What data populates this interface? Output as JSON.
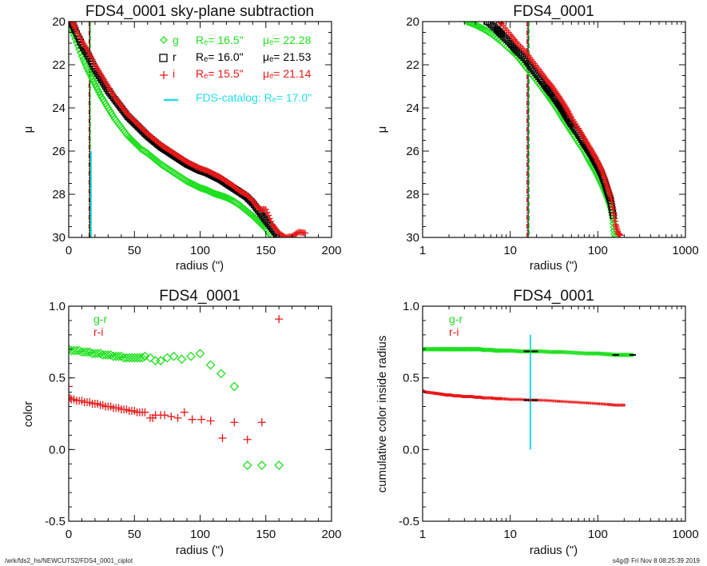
{
  "colors": {
    "g": "#1fe01f",
    "r": "#000000",
    "i": "#e81818",
    "catalog": "#22dde8",
    "frame": "#111111"
  },
  "footer": {
    "left": "/wrk/fds2_hs/NEWCUTS2/FDS4_0001_ciplot",
    "right": "s4g@  Fri Nov  8 08:25:39 2019"
  },
  "chart_data": [
    {
      "id": "sb-linear",
      "type": "scatter",
      "title": "FDS4_0001 sky-plane subtraction",
      "xlabel": "radius (\")",
      "ylabel": "μ",
      "xscale": "linear",
      "xlim": [
        0,
        200
      ],
      "ylim": [
        30,
        20
      ],
      "xticks": [
        0,
        50,
        100,
        150,
        200
      ],
      "xtick_labels": [
        "0",
        "50",
        "100",
        "150",
        "200"
      ],
      "yticks": [
        20,
        22,
        24,
        26,
        28,
        30
      ],
      "ytick_labels": [
        "20",
        "22",
        "24",
        "26",
        "28",
        "30"
      ],
      "legend_position": "top-right",
      "legend": [
        {
          "symbol": "diamond",
          "band": "g",
          "re": "Rₑ=  16.5\"",
          "mue": "μₑ= 22.28"
        },
        {
          "symbol": "square",
          "band": "r",
          "re": "Rₑ=  16.0\"",
          "mue": "μₑ= 21.53"
        },
        {
          "symbol": "plus",
          "band": "i",
          "re": "Rₑ=  15.5\"",
          "mue": "μₑ= 21.14"
        },
        {
          "symbol": "line",
          "band": "",
          "re": "FDS-catalog: Rₑ=  17.0\"",
          "mue": ""
        }
      ],
      "vlines": [
        {
          "x": 15.5,
          "color": "i",
          "style": "dashdot"
        },
        {
          "x": 16.0,
          "color": "r",
          "style": "solid"
        },
        {
          "x": 16.5,
          "color": "g",
          "style": "dashed"
        },
        {
          "x": 17.0,
          "color": "catalog",
          "style": "solid",
          "ymin": 26,
          "ymax": 30
        }
      ],
      "series": [
        {
          "name": "g",
          "symbol": "diamond",
          "x": [
            0,
            5,
            10,
            15,
            20,
            25,
            30,
            35,
            40,
            45,
            50,
            55,
            60,
            65,
            70,
            75,
            80,
            85,
            90,
            95,
            100,
            105,
            110,
            115,
            120,
            125,
            130,
            135,
            140,
            145,
            150,
            155
          ],
          "y": [
            20.0,
            20.8,
            21.6,
            22.3,
            22.9,
            23.5,
            24.0,
            24.5,
            24.9,
            25.3,
            25.6,
            25.9,
            26.1,
            26.35,
            26.6,
            26.8,
            27.0,
            27.2,
            27.4,
            27.55,
            27.7,
            27.8,
            27.95,
            28.05,
            28.15,
            28.3,
            28.5,
            28.75,
            29.0,
            29.3,
            29.6,
            30.0
          ]
        },
        {
          "name": "r",
          "symbol": "square",
          "x": [
            2,
            5,
            10,
            15,
            20,
            25,
            30,
            35,
            40,
            45,
            50,
            55,
            60,
            65,
            70,
            75,
            80,
            85,
            90,
            95,
            100,
            105,
            110,
            115,
            120,
            125,
            130,
            135,
            140,
            145,
            150,
            155,
            160
          ],
          "y": [
            20.0,
            20.4,
            21.1,
            21.6,
            22.2,
            22.7,
            23.2,
            23.6,
            24.0,
            24.4,
            24.7,
            25.0,
            25.3,
            25.55,
            25.8,
            26.0,
            26.2,
            26.4,
            26.6,
            26.75,
            26.9,
            27.0,
            27.15,
            27.3,
            27.5,
            27.7,
            27.9,
            28.1,
            28.4,
            28.8,
            29.2,
            29.6,
            30.0
          ]
        },
        {
          "name": "i",
          "symbol": "plus",
          "x": [
            3,
            5,
            10,
            15,
            20,
            25,
            30,
            35,
            40,
            45,
            50,
            55,
            60,
            65,
            70,
            75,
            80,
            85,
            90,
            95,
            100,
            105,
            110,
            115,
            120,
            125,
            130,
            135,
            140,
            145,
            150,
            155,
            160,
            165,
            170,
            175,
            180
          ],
          "y": [
            20.0,
            20.3,
            20.9,
            21.4,
            22.0,
            22.5,
            23.0,
            23.5,
            23.9,
            24.3,
            24.6,
            24.9,
            25.2,
            25.45,
            25.7,
            25.9,
            26.1,
            26.3,
            26.5,
            26.65,
            26.8,
            26.9,
            27.05,
            27.2,
            27.4,
            27.6,
            27.85,
            28.0,
            28.3,
            28.7,
            28.7,
            29.4,
            29.8,
            30.0,
            29.95,
            29.75,
            29.8
          ]
        }
      ]
    },
    {
      "id": "sb-log",
      "type": "scatter",
      "title": "FDS4_0001",
      "xlabel": "radius (\")",
      "ylabel": "μ",
      "xscale": "log",
      "xlim": [
        1,
        1000
      ],
      "ylim": [
        30,
        20
      ],
      "xticks": [
        1,
        10,
        100,
        1000
      ],
      "xtick_labels": [
        "1",
        "10",
        "100",
        "1000"
      ],
      "yticks": [
        20,
        22,
        24,
        26,
        28,
        30
      ],
      "ytick_labels": [
        "20",
        "22",
        "24",
        "26",
        "28",
        "30"
      ],
      "vlines": [
        {
          "x": 15.5,
          "color": "i",
          "style": "dashdot"
        },
        {
          "x": 16.0,
          "color": "r",
          "style": "solid"
        },
        {
          "x": 16.5,
          "color": "g",
          "style": "dashed"
        }
      ],
      "series": [
        {
          "name": "g",
          "symbol": "diamond",
          "x": [
            3.2,
            4,
            5,
            6,
            8,
            10,
            12,
            15,
            18,
            22,
            26,
            30,
            35,
            40,
            45,
            50,
            60,
            70,
            80,
            90,
            100,
            110,
            120,
            130,
            140,
            150,
            155
          ],
          "y": [
            20.0,
            20.15,
            20.35,
            20.55,
            20.95,
            21.3,
            21.6,
            22.1,
            22.5,
            22.95,
            23.35,
            23.7,
            24.1,
            24.5,
            24.8,
            25.1,
            25.6,
            26.0,
            26.45,
            26.8,
            27.15,
            27.5,
            27.85,
            28.2,
            28.6,
            29.2,
            30.0
          ]
        },
        {
          "name": "r",
          "symbol": "square",
          "x": [
            5.5,
            7,
            8,
            10,
            12,
            15,
            18,
            22,
            26,
            30,
            35,
            40,
            45,
            50,
            60,
            70,
            80,
            90,
            100,
            110,
            120,
            130,
            140,
            150
          ],
          "y": [
            20.0,
            20.35,
            20.6,
            21.0,
            21.35,
            21.75,
            22.2,
            22.65,
            23.05,
            23.35,
            23.75,
            24.1,
            24.45,
            24.75,
            25.2,
            25.65,
            26.0,
            26.35,
            26.7,
            27.05,
            27.45,
            27.9,
            28.3,
            29.0
          ]
        },
        {
          "name": "i",
          "symbol": "plus",
          "x": [
            7.5,
            8,
            10,
            12,
            15,
            18,
            22,
            26,
            30,
            35,
            40,
            45,
            50,
            60,
            70,
            80,
            90,
            100,
            110,
            120,
            130,
            140,
            150,
            160,
            170,
            180
          ],
          "y": [
            20.0,
            20.1,
            20.6,
            21.0,
            21.4,
            21.85,
            22.3,
            22.7,
            23.0,
            23.4,
            23.75,
            24.1,
            24.45,
            24.95,
            25.4,
            25.8,
            26.15,
            26.5,
            26.85,
            27.25,
            27.7,
            28.1,
            28.7,
            29.4,
            29.8,
            29.9
          ]
        }
      ]
    },
    {
      "id": "color-profile",
      "type": "scatter",
      "title": "FDS4_0001",
      "xlabel": "radius (\")",
      "ylabel": "color",
      "xscale": "linear",
      "xlim": [
        0,
        200
      ],
      "ylim": [
        -0.5,
        1.0
      ],
      "xticks": [
        0,
        50,
        100,
        150,
        200
      ],
      "xtick_labels": [
        "0",
        "50",
        "100",
        "150",
        "200"
      ],
      "yticks": [
        -0.5,
        0.0,
        0.5,
        1.0
      ],
      "ytick_labels": [
        "-0.5",
        "0.0",
        "0.5",
        "1.0"
      ],
      "legend_position": "top-left",
      "legend": [
        {
          "label": "g-r",
          "color": "g"
        },
        {
          "label": "r-i",
          "color": "i"
        }
      ],
      "series": [
        {
          "name": "g-r",
          "symbol": "diamond",
          "x": [
            0,
            2,
            4,
            6,
            8,
            10,
            12,
            14,
            16,
            18,
            20,
            22,
            24,
            26,
            28,
            30,
            32,
            34,
            36,
            38,
            40,
            42,
            44,
            46,
            48,
            50,
            52,
            54,
            56,
            58,
            62,
            66,
            70,
            75,
            80,
            86,
            93,
            100,
            108,
            116,
            126,
            136,
            147,
            160
          ],
          "y": [
            0.7,
            0.69,
            0.69,
            0.69,
            0.69,
            0.68,
            0.68,
            0.68,
            0.68,
            0.67,
            0.67,
            0.67,
            0.67,
            0.66,
            0.66,
            0.66,
            0.66,
            0.65,
            0.65,
            0.65,
            0.65,
            0.64,
            0.64,
            0.64,
            0.64,
            0.64,
            0.64,
            0.64,
            0.64,
            0.65,
            0.64,
            0.62,
            0.62,
            0.64,
            0.65,
            0.63,
            0.65,
            0.67,
            0.59,
            0.53,
            0.44,
            -0.11,
            -0.11,
            -0.11
          ]
        },
        {
          "name": "r-i",
          "symbol": "plus",
          "x": [
            0,
            1,
            2,
            4,
            6,
            8,
            10,
            12,
            14,
            16,
            18,
            20,
            22,
            24,
            26,
            28,
            30,
            32,
            34,
            36,
            38,
            40,
            42,
            44,
            46,
            48,
            50,
            52,
            54,
            56,
            58,
            62,
            64,
            66,
            70,
            73,
            78,
            83,
            88,
            94,
            101,
            108,
            117,
            126,
            136,
            147,
            160
          ],
          "y": [
            0.44,
            0.36,
            0.35,
            0.35,
            0.34,
            0.34,
            0.34,
            0.33,
            0.33,
            0.33,
            0.32,
            0.32,
            0.32,
            0.31,
            0.31,
            0.3,
            0.3,
            0.3,
            0.29,
            0.29,
            0.29,
            0.28,
            0.28,
            0.28,
            0.27,
            0.27,
            0.27,
            0.26,
            0.26,
            0.26,
            0.26,
            0.22,
            0.22,
            0.24,
            0.24,
            0.24,
            0.23,
            0.22,
            0.26,
            0.21,
            0.21,
            0.2,
            0.08,
            0.19,
            0.07,
            0.19,
            0.91
          ]
        }
      ]
    },
    {
      "id": "cumulative-color",
      "type": "scatter",
      "title": "FDS4_0001",
      "xlabel": "radius (\")",
      "ylabel": "cumulative color inside radius",
      "xscale": "log",
      "xlim": [
        1,
        1000
      ],
      "ylim": [
        -0.5,
        1.0
      ],
      "xticks": [
        1,
        10,
        100,
        1000
      ],
      "xtick_labels": [
        "1",
        "10",
        "100",
        "1000"
      ],
      "yticks": [
        -0.5,
        0.0,
        0.5,
        1.0
      ],
      "ytick_labels": [
        "-0.5",
        "0.0",
        "0.5",
        "1.0"
      ],
      "legend_position": "top-left",
      "legend": [
        {
          "label": "g-r",
          "color": "g"
        },
        {
          "label": "r-i",
          "color": "i"
        }
      ],
      "vlines": [
        {
          "x": 17.0,
          "color": "catalog",
          "style": "solid",
          "ymin": 0.0,
          "ymax": 0.8
        }
      ],
      "markers": [
        {
          "x": 15.5,
          "y": 0.685,
          "color": "r"
        },
        {
          "x": 19.0,
          "y": 0.685,
          "color": "r"
        },
        {
          "x": 15.5,
          "y": 0.345,
          "color": "r"
        },
        {
          "x": 19.0,
          "y": 0.345,
          "color": "r"
        },
        {
          "x": 160,
          "y": 0.66,
          "color": "r"
        },
        {
          "x": 250,
          "y": 0.66,
          "color": "r"
        }
      ],
      "series": [
        {
          "name": "g-r",
          "symbol": "diamond",
          "x": [
            1,
            1.1,
            1.3,
            1.5,
            1.7,
            1.9,
            2.1,
            2.3,
            2.6,
            2.9,
            3.2,
            3.6,
            4,
            4.5,
            5,
            6,
            7,
            8,
            10,
            13,
            17,
            22,
            30,
            40,
            55,
            75,
            100,
            130,
            160,
            200,
            250
          ],
          "y": [
            0.7,
            0.7,
            0.7,
            0.7,
            0.7,
            0.7,
            0.7,
            0.7,
            0.7,
            0.7,
            0.7,
            0.7,
            0.7,
            0.7,
            0.695,
            0.695,
            0.69,
            0.69,
            0.69,
            0.685,
            0.685,
            0.685,
            0.68,
            0.68,
            0.675,
            0.67,
            0.67,
            0.665,
            0.66,
            0.66,
            0.66
          ]
        },
        {
          "name": "r-i",
          "symbol": "plus",
          "x": [
            1,
            1.1,
            1.3,
            1.5,
            1.7,
            1.9,
            2.1,
            2.3,
            2.6,
            2.9,
            3.2,
            3.6,
            4,
            4.5,
            5,
            6,
            7,
            8,
            10,
            13,
            17,
            22,
            30,
            40,
            55,
            75,
            100,
            130,
            160,
            200
          ],
          "y": [
            0.41,
            0.4,
            0.395,
            0.39,
            0.385,
            0.38,
            0.38,
            0.375,
            0.375,
            0.37,
            0.37,
            0.37,
            0.365,
            0.365,
            0.36,
            0.36,
            0.355,
            0.355,
            0.35,
            0.35,
            0.345,
            0.345,
            0.34,
            0.335,
            0.33,
            0.325,
            0.32,
            0.315,
            0.31,
            0.31
          ]
        }
      ]
    }
  ]
}
